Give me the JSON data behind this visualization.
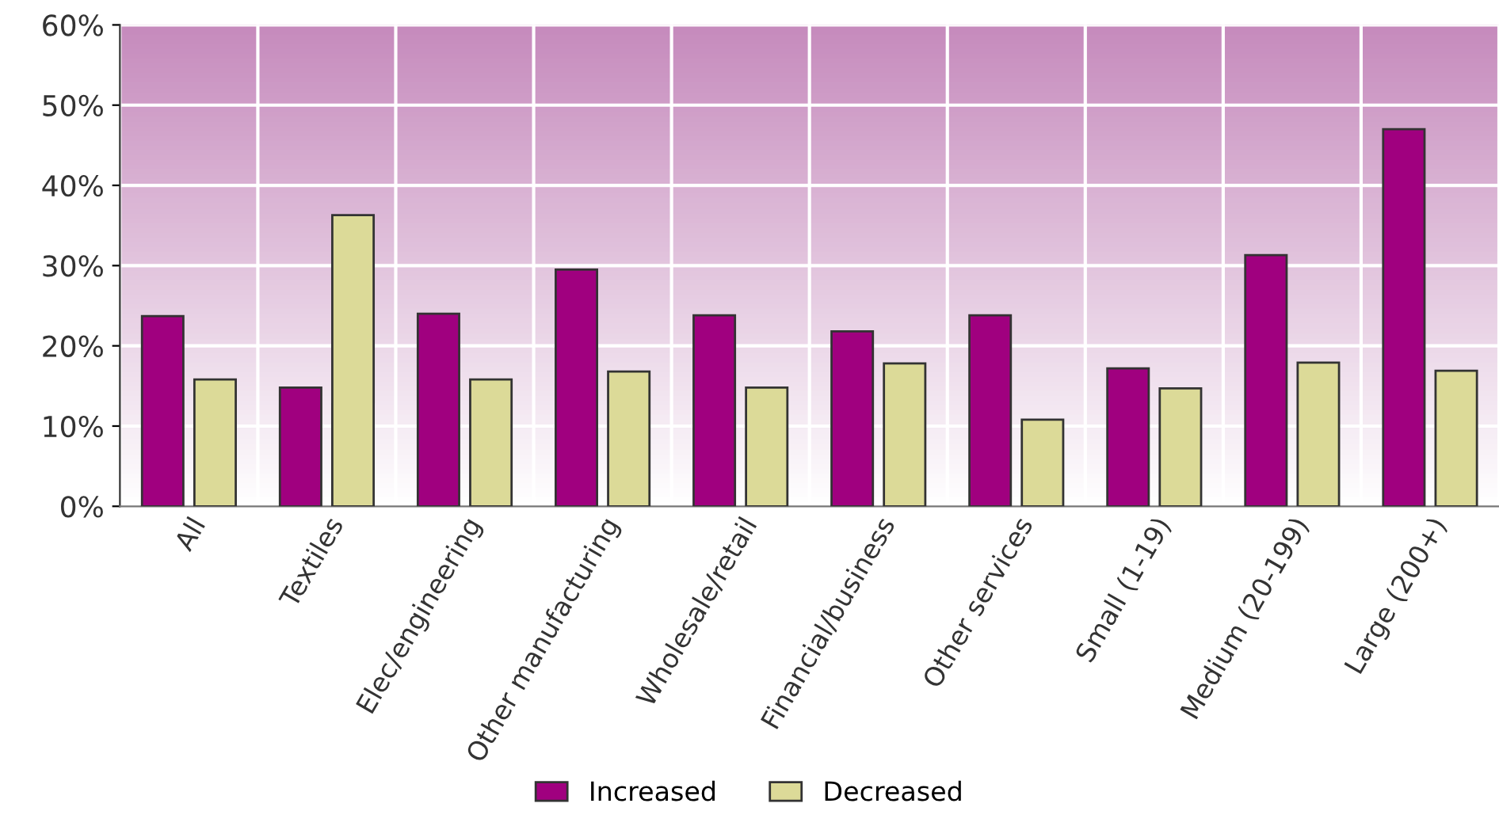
{
  "chart_data": {
    "type": "bar",
    "categories": [
      "All",
      "Textiles",
      "Elec/engineering",
      "Other manufacturing",
      "Wholesale/retail",
      "Financial/business",
      "Other services",
      "Small (1-19)",
      "Medium (20-199)",
      "Large (200+)"
    ],
    "series": [
      {
        "name": "Increased",
        "color": "#a0007f",
        "values": [
          23.7,
          14.8,
          24.0,
          29.5,
          23.8,
          21.8,
          23.8,
          17.2,
          31.3,
          47.0
        ]
      },
      {
        "name": "Decreased",
        "color": "#dcda98",
        "values": [
          15.8,
          36.3,
          15.8,
          16.8,
          14.8,
          17.8,
          10.8,
          14.7,
          17.9,
          16.9
        ]
      }
    ],
    "ylim": [
      0,
      60
    ],
    "yticks": [
      {
        "value": 0,
        "label": "0%"
      },
      {
        "value": 10,
        "label": "10%"
      },
      {
        "value": 20,
        "label": "20%"
      },
      {
        "value": 30,
        "label": "30%"
      },
      {
        "value": 40,
        "label": "40%"
      },
      {
        "value": 50,
        "label": "50%"
      },
      {
        "value": 60,
        "label": "60%"
      }
    ],
    "grid": true,
    "legend": "bottom"
  }
}
